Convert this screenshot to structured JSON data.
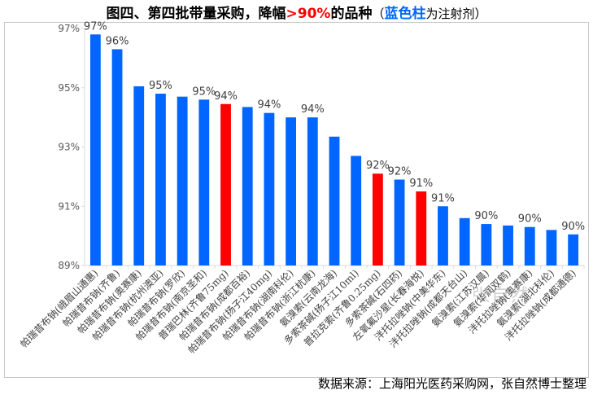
{
  "title": {
    "main": "图四、第四批带量采购，降幅",
    "highlight": ">90%",
    "tail": "的品种",
    "note_open": "（",
    "note_blue": "蓝色柱",
    "note_rest": "为注射剂）"
  },
  "source": "数据来源：上海阳光医药采购网，张自然博士整理",
  "watermark": "张自然",
  "colors": {
    "injection": "#0066ff",
    "other": "#ff0000",
    "axis": "#d9d9d9"
  },
  "chart_data": {
    "type": "bar",
    "ylim": [
      89,
      97
    ],
    "yticks": [
      "89%",
      "91%",
      "93%",
      "95%",
      "97%"
    ],
    "ytick_values": [
      89,
      91,
      93,
      95,
      97
    ],
    "categories": [
      "帕瑞昔布钠(峨眉山通惠)",
      "帕瑞昔布钠(齐鲁)",
      "帕瑞昔布钠(奥赛康)",
      "帕瑞昔布钠(杭州澳亚)",
      "帕瑞昔布钠(罗欣)",
      "帕瑞昔布钠(南京圣和)",
      "普瑞巴林(齐鲁75mg)",
      "帕瑞昔布钠(成都百裕)",
      "帕瑞昔布钠(扬子江40mg)",
      "帕瑞昔布钠(湖南科伦)",
      "帕瑞昔布钠(浙江杭康)",
      "氨溴索(云南龙海)",
      "多索茶碱(扬子江10ml)",
      "普拉克索(齐鲁0.25mg)",
      "多索茶碱(石四药)",
      "左氧氟沙星(长春海悦)",
      "泮托拉唑钠(中美华东)",
      "泮托拉唑钠(成都天台山)",
      "氨溴索(江苏汉晨)",
      "氨溴索(华润双鹤)",
      "泮托拉唑钠(奥赛康)",
      "氨溴索(湖北科伦)",
      "泮托拉唑钠(成都通德)"
    ],
    "values": [
      96.8,
      96.3,
      95.05,
      94.8,
      94.7,
      94.6,
      94.45,
      94.35,
      94.15,
      94.0,
      94.0,
      93.35,
      92.7,
      92.1,
      91.9,
      91.5,
      91.0,
      90.6,
      90.4,
      90.35,
      90.3,
      90.2,
      90.05
    ],
    "labels": [
      "97%",
      "96%",
      "",
      "95%",
      "",
      "95%",
      "94%",
      "",
      "94%",
      "",
      "94%",
      "",
      "",
      "92%",
      "92%",
      "91%",
      "91%",
      "",
      "90%",
      "",
      "90%",
      "",
      "90%"
    ],
    "is_injection": [
      true,
      true,
      true,
      true,
      true,
      true,
      false,
      true,
      true,
      true,
      true,
      true,
      true,
      false,
      true,
      false,
      true,
      true,
      true,
      true,
      true,
      true,
      true
    ],
    "legend": "none",
    "grid": false
  }
}
